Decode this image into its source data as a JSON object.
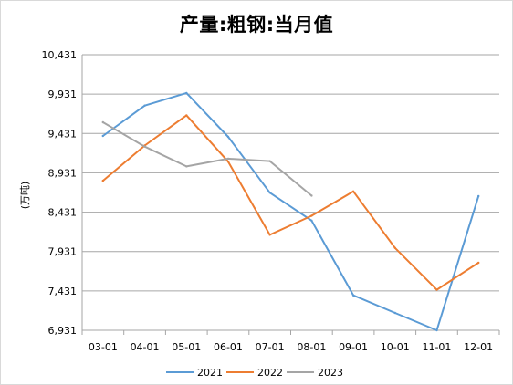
{
  "chart_data": {
    "type": "line",
    "title": "产量:粗钢:当月值",
    "xlabel": "",
    "ylabel": "(万吨)",
    "categories": [
      "03-01",
      "04-01",
      "05-01",
      "06-01",
      "07-01",
      "08-01",
      "09-01",
      "10-01",
      "11-01",
      "12-01"
    ],
    "yticks": [
      "6,931",
      "7,431",
      "7,931",
      "8,431",
      "8,931",
      "9,431",
      "9,931",
      "10,431"
    ],
    "ylim": [
      6931,
      10431
    ],
    "grid": true,
    "legend_position": "bottom",
    "series": [
      {
        "name": "2021",
        "color": "#5b9bd5",
        "values": [
          9400,
          9785,
          9945,
          9388,
          8679,
          8324,
          7375,
          7151,
          6931,
          8635
        ]
      },
      {
        "name": "2022",
        "color": "#ed7d31",
        "values": [
          8830,
          9278,
          9661,
          9073,
          8143,
          8385,
          8695,
          7976,
          7445,
          7789
        ]
      },
      {
        "name": "2023",
        "color": "#a5a5a5",
        "values": [
          9573,
          9264,
          9012,
          9111,
          9080,
          8641,
          null,
          null,
          null,
          null
        ]
      }
    ]
  }
}
